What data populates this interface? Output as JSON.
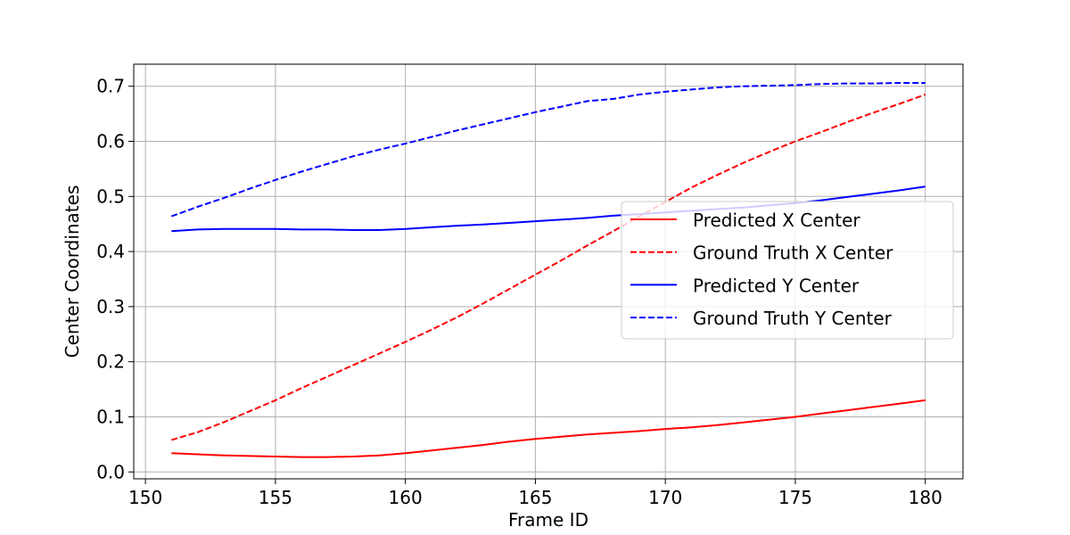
{
  "chart_data": {
    "type": "line",
    "title": "",
    "xlabel": "Frame ID",
    "ylabel": "Center Coordinates",
    "xlim": [
      149.55,
      181.45
    ],
    "ylim": [
      -0.0125,
      0.74
    ],
    "xticks": [
      150,
      155,
      160,
      165,
      170,
      175,
      180
    ],
    "xtick_labels": [
      "150",
      "155",
      "160",
      "165",
      "170",
      "175",
      "180"
    ],
    "yticks": [
      0.0,
      0.1,
      0.2,
      0.3,
      0.4,
      0.5,
      0.6,
      0.7
    ],
    "ytick_labels": [
      "0.0",
      "0.1",
      "0.2",
      "0.3",
      "0.4",
      "0.5",
      "0.6",
      "0.7"
    ],
    "grid": true,
    "legend_position": "center-right",
    "x": [
      151,
      152,
      153,
      154,
      155,
      156,
      157,
      158,
      159,
      160,
      161,
      162,
      163,
      164,
      165,
      166,
      167,
      168,
      169,
      170,
      171,
      172,
      173,
      174,
      175,
      176,
      177,
      178,
      179,
      180
    ],
    "series": [
      {
        "name": "Predicted X Center",
        "color": "#ff0000",
        "dash": "solid",
        "values": [
          0.034,
          0.032,
          0.03,
          0.029,
          0.028,
          0.027,
          0.027,
          0.028,
          0.03,
          0.034,
          0.039,
          0.044,
          0.049,
          0.055,
          0.06,
          0.064,
          0.068,
          0.071,
          0.074,
          0.078,
          0.081,
          0.085,
          0.09,
          0.095,
          0.1,
          0.106,
          0.112,
          0.118,
          0.124,
          0.13
        ]
      },
      {
        "name": "Ground Truth X Center",
        "color": "#ff0000",
        "dash": "dashed",
        "values": [
          0.058,
          0.072,
          0.09,
          0.11,
          0.13,
          0.152,
          0.173,
          0.194,
          0.215,
          0.236,
          0.258,
          0.281,
          0.306,
          0.332,
          0.358,
          0.384,
          0.411,
          0.437,
          0.464,
          0.49,
          0.516,
          0.539,
          0.561,
          0.581,
          0.6,
          0.617,
          0.635,
          0.652,
          0.668,
          0.685
        ]
      },
      {
        "name": "Predicted Y Center",
        "color": "#0000ff",
        "dash": "solid",
        "values": [
          0.437,
          0.44,
          0.441,
          0.441,
          0.441,
          0.44,
          0.44,
          0.439,
          0.439,
          0.441,
          0.444,
          0.447,
          0.449,
          0.452,
          0.455,
          0.458,
          0.461,
          0.465,
          0.468,
          0.471,
          0.474,
          0.477,
          0.48,
          0.484,
          0.488,
          0.493,
          0.499,
          0.505,
          0.511,
          0.518
        ]
      },
      {
        "name": "Ground Truth Y Center",
        "color": "#0000ff",
        "dash": "dashed",
        "values": [
          0.464,
          0.481,
          0.497,
          0.514,
          0.53,
          0.545,
          0.559,
          0.573,
          0.585,
          0.596,
          0.608,
          0.62,
          0.631,
          0.642,
          0.653,
          0.663,
          0.673,
          0.677,
          0.685,
          0.69,
          0.694,
          0.698,
          0.7,
          0.701,
          0.702,
          0.704,
          0.705,
          0.705,
          0.706,
          0.706
        ]
      }
    ]
  }
}
